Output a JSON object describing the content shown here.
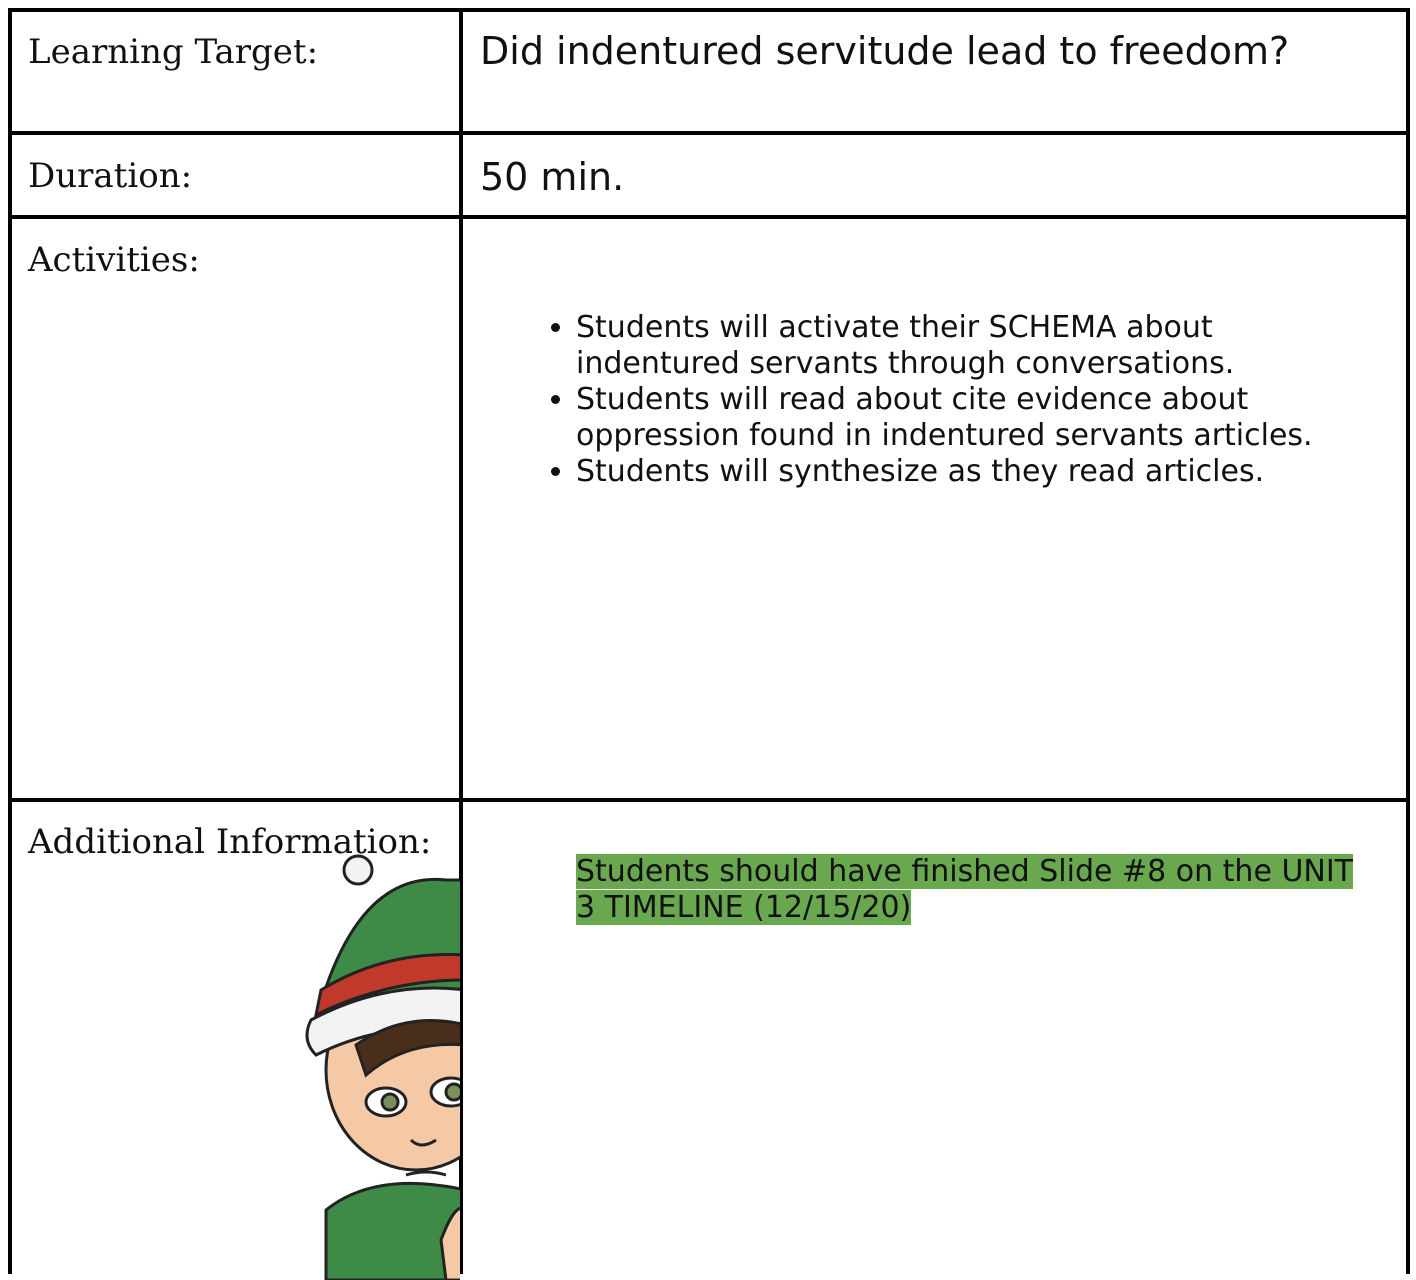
{
  "table": {
    "rows": [
      {
        "label": "Learning Target:",
        "content": "Did indentured servitude lead to freedom?"
      },
      {
        "label": "Duration:",
        "content": "50 min."
      },
      {
        "label": "Activities:",
        "items": [
          "Students will activate their SCHEMA about indentured servants through conversations.",
          "Students will read about cite evidence about oppression found in indentured servants articles.",
          "Students will synthesize as they read articles."
        ]
      },
      {
        "label": "Additional Information:",
        "content": "Students should have finished Slide #8 on the UNIT 3 TIMELINE (12/15/20)"
      }
    ]
  }
}
